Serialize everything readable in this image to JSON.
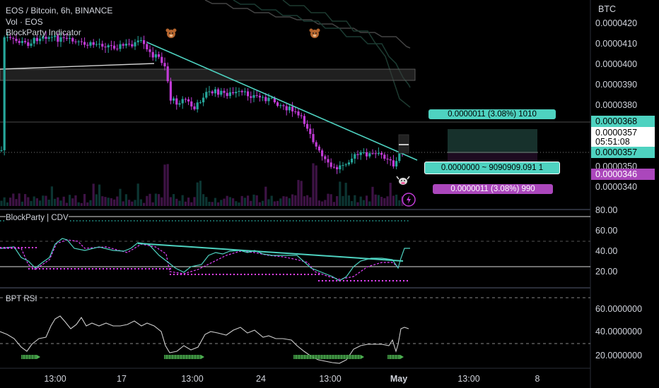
{
  "header": {
    "symbol_line": "EOS / Bitcoin, 6h, BINANCE",
    "vol_label": "Vol · EOS",
    "indicator_label": "BlockParty Indicator"
  },
  "currency": "BTC",
  "price_axis": [
    "0.0000420",
    "0.0000410",
    "0.0000400",
    "0.0000390",
    "0.0000380",
    "0.0000350",
    "0.0000340"
  ],
  "price_labels": {
    "upper": "0.0000368",
    "current": "0.0000357",
    "countdown": "05:51:08",
    "entry": "0.0000357",
    "lower": "0.0000346"
  },
  "position_box": {
    "target_label": "0.0000011 (3.08%) 1010",
    "center_label": "0.0000000 ~ 9090909.091 1",
    "stop_label": "0.0000011 (3.08%) 990"
  },
  "cdv_panel": {
    "title": "BlockParty | CDV",
    "axis": [
      "80.00",
      "60.00",
      "40.00",
      "20.00"
    ]
  },
  "rsi_panel": {
    "title": "BPT RSI",
    "axis": [
      "60.0000000",
      "40.0000000",
      "20.0000000"
    ]
  },
  "time_axis": [
    "13:00",
    "17",
    "13:00",
    "24",
    "13:00",
    "May",
    "13:00",
    "8"
  ],
  "colors": {
    "bull": "#26a69a",
    "bear": "#c13bd6",
    "trendline": "#4ed2c0",
    "cdv_dots": "#e040fb",
    "rsi_markers": "#4caf50",
    "label_green": "#4ed2c0",
    "label_purple": "#ab47bc"
  },
  "icons": [
    "bear-face-icon",
    "bear-face-icon",
    "bull-face-icon",
    "lightning-icon"
  ]
}
